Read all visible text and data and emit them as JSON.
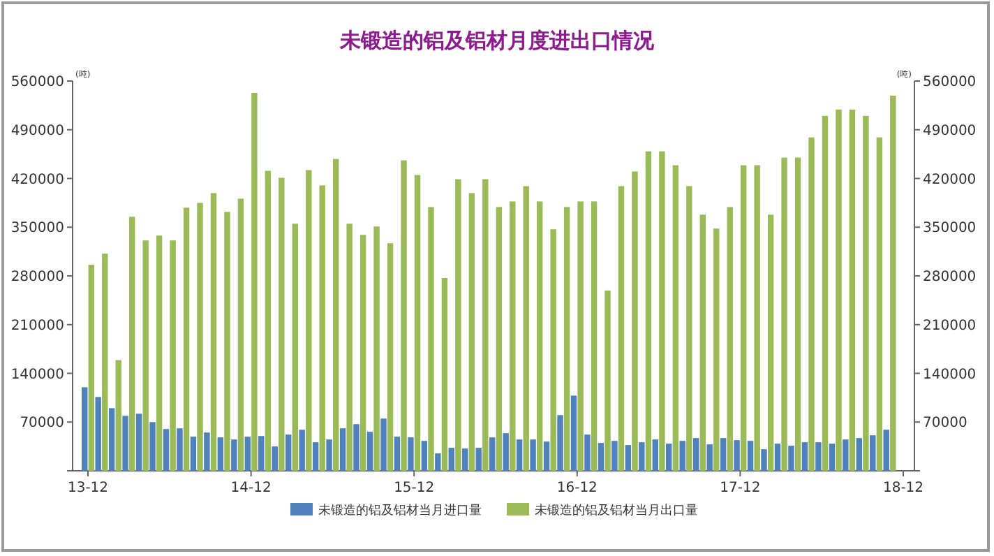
{
  "chart_data": {
    "type": "bar",
    "title": "未锻造的铝及铝材月度进出口情况",
    "ylabel": "(吨)",
    "y2label": "(吨)",
    "categories": [
      "13-12",
      null,
      null,
      null,
      null,
      null,
      null,
      null,
      null,
      null,
      null,
      null,
      "14-12",
      null,
      null,
      null,
      null,
      null,
      null,
      null,
      null,
      null,
      null,
      null,
      "15-12",
      null,
      null,
      null,
      null,
      null,
      null,
      null,
      null,
      null,
      null,
      null,
      "16-12",
      null,
      null,
      null,
      null,
      null,
      null,
      null,
      null,
      null,
      null,
      null,
      "17-12",
      null,
      null,
      null,
      null,
      null,
      null,
      null,
      null,
      null,
      null,
      null,
      "18-12"
    ],
    "series": [
      {
        "name": "未锻造的铝及铝材当月进口量",
        "color": "#4f81bd",
        "values": [
          120000,
          106000,
          90000,
          79000,
          82000,
          70000,
          60000,
          61000,
          49000,
          55000,
          48000,
          45000,
          49000,
          50000,
          35000,
          52000,
          59000,
          41000,
          45000,
          61000,
          67000,
          56000,
          75000,
          49000,
          48000,
          43000,
          25000,
          33000,
          32000,
          33000,
          48000,
          54000,
          45000,
          45000,
          42000,
          80000,
          108000,
          52000,
          40000,
          43000,
          37000,
          41000,
          45000,
          39000,
          43000,
          47000,
          38000,
          47000,
          44000,
          43000,
          31000,
          39000,
          36000,
          41000,
          41000,
          39000,
          45000,
          47000,
          51000,
          59000,
          null
        ]
      },
      {
        "name": "未锻造的铝及铝材当月出口量",
        "color": "#9bbb59",
        "values": [
          296000,
          312000,
          159000,
          365000,
          331000,
          338000,
          331000,
          378000,
          385000,
          399000,
          372000,
          391000,
          543000,
          431000,
          421000,
          355000,
          432000,
          410000,
          448000,
          355000,
          339000,
          351000,
          327000,
          446000,
          425000,
          379000,
          277000,
          419000,
          399000,
          419000,
          379000,
          387000,
          409000,
          387000,
          347000,
          379000,
          387000,
          387000,
          259000,
          409000,
          430000,
          459000,
          459000,
          439000,
          409000,
          368000,
          348000,
          379000,
          439000,
          439000,
          368000,
          450000,
          450000,
          479000,
          510000,
          519000,
          519000,
          510000,
          479000,
          539000,
          null
        ]
      }
    ],
    "ylim": [
      0,
      560000
    ],
    "yticks": [
      {
        "value": 0,
        "label": null
      },
      70000,
      140000,
      210000,
      280000,
      350000,
      420000,
      490000,
      560000
    ],
    "y2lim": [
      0,
      560000
    ],
    "y2ticks": [
      {
        "value": 0,
        "label": null
      },
      70000,
      140000,
      210000,
      280000,
      350000,
      420000,
      490000,
      560000
    ],
    "grid": false,
    "legend": "bottom"
  }
}
